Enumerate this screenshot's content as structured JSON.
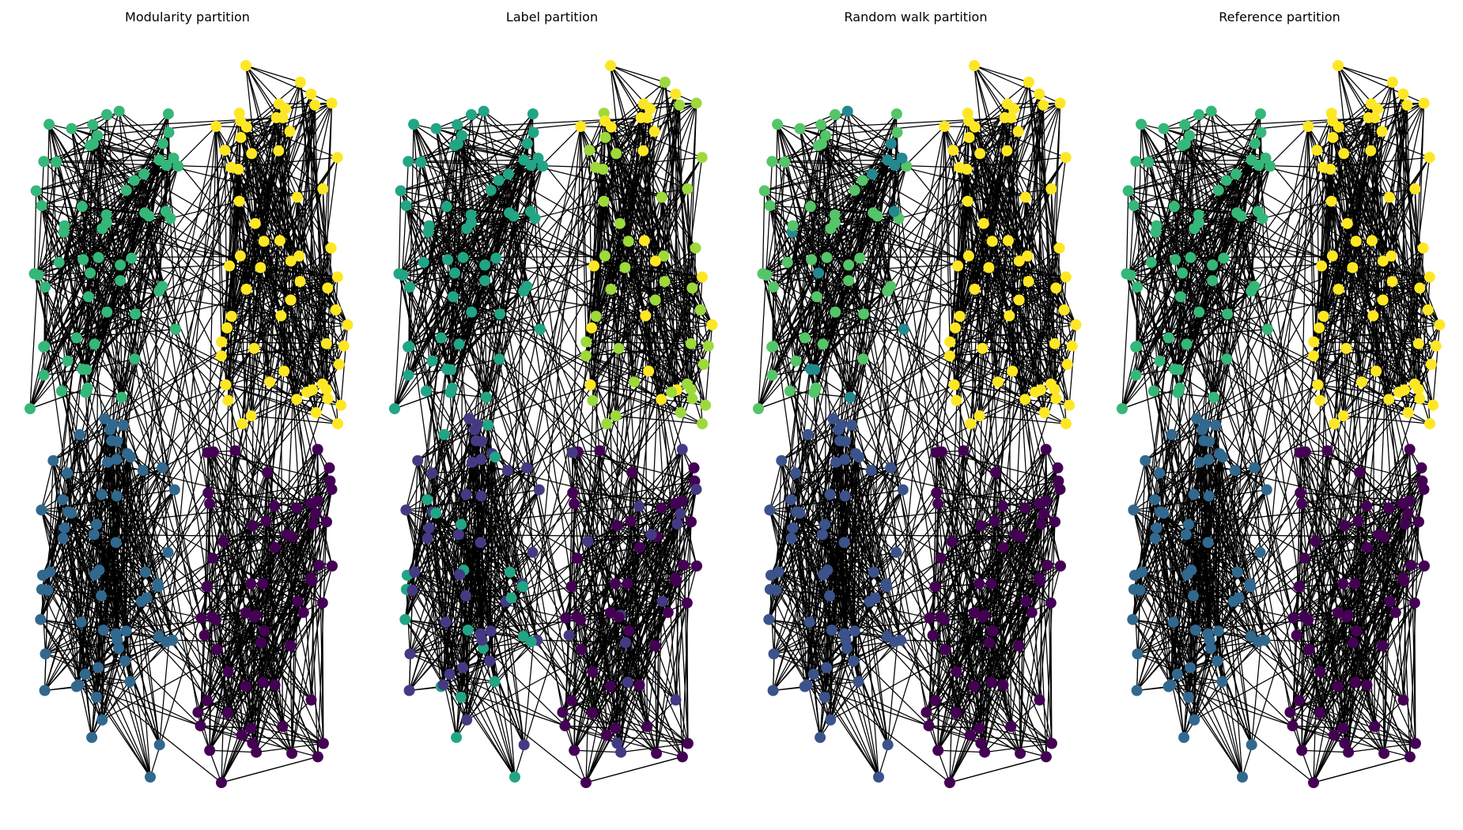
{
  "figure": {
    "panels": [
      {
        "title": "Modularity partition",
        "mode": "modularity"
      },
      {
        "title": "Label partition",
        "mode": "label"
      },
      {
        "title": "Random walk partition",
        "mode": "random"
      },
      {
        "title": "Reference partition",
        "mode": "reference"
      }
    ],
    "community_colors": {
      "top_left": "#35b779",
      "top_right": "#fde725",
      "bottom_left": "#31688e",
      "bottom_right": "#440154",
      "label_teal": "#21a585",
      "label_lime": "#9dd93b",
      "label_indigo": "#443a83",
      "random_green": "#54c568",
      "random_teal": "#23898e",
      "random_slate": "#3b528b"
    }
  }
}
